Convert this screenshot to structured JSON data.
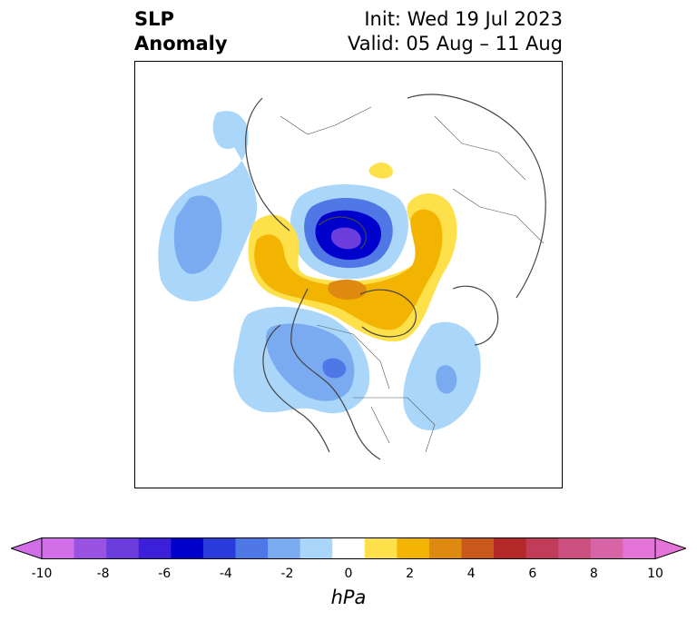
{
  "title": {
    "left_line1": "SLP",
    "left_line2": "Anomaly",
    "right_line1": "Init: Wed 19 Jul 2023",
    "right_line2": "Valid: 05 Aug – 11 Aug"
  },
  "colorbar": {
    "unit": "hPa",
    "tick_labels": [
      "-10",
      "-8",
      "-6",
      "-4",
      "-2",
      "0",
      "2",
      "4",
      "6",
      "8",
      "10"
    ],
    "levels": [
      -10,
      -9,
      -8,
      -7,
      -6,
      -5,
      -4,
      -3,
      -2,
      -1,
      1,
      2,
      3,
      4,
      5,
      6,
      7,
      8,
      9,
      10
    ],
    "colors": [
      "#d26ee8",
      "#9a52e2",
      "#6c3ddc",
      "#3c1fd8",
      "#0000cc",
      "#2a3bdc",
      "#5077e6",
      "#7aaaf0",
      "#aad6fa",
      "#ffffff",
      "#fde04a",
      "#f2b400",
      "#de8a10",
      "#c8581c",
      "#b42828",
      "#c03c58",
      "#cc5080",
      "#d864a8",
      "#e474d8"
    ],
    "extend": "both"
  },
  "map": {
    "projection": "polar stereographic (Northern Hemisphere)",
    "features": [
      "negative anomaly over central Arctic",
      "positive anomaly over northern Russia / Siberia",
      "negative anomaly over central Canada",
      "negative anomaly over North Atlantic",
      "negative anomaly over Kamchatka / Bering Sea"
    ]
  }
}
